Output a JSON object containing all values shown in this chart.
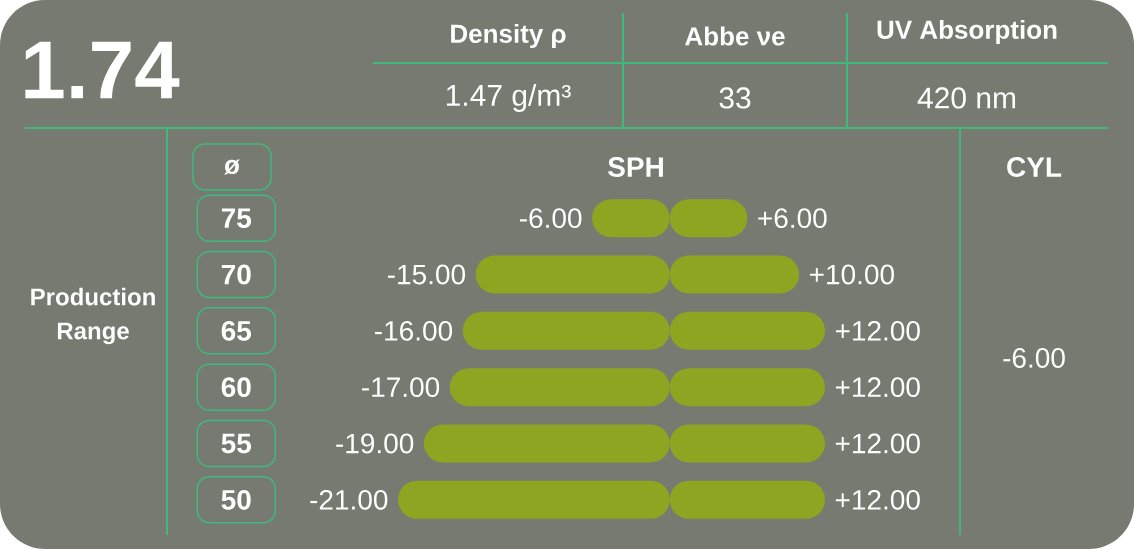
{
  "chart_data": {
    "type": "bar",
    "orientation": "horizontal",
    "stacked": true,
    "title": "1.74",
    "categories": [
      "75",
      "70",
      "65",
      "60",
      "55",
      "50"
    ],
    "series": [
      {
        "color": "#8ea522",
        "values": [
          -6,
          -15,
          -16,
          -17,
          -19,
          -21
        ],
        "value_labels": [
          "-6.00",
          "-15.00",
          "-16.00",
          "-17.00",
          "-19.00",
          "-21.00"
        ]
      },
      {
        "color": "#8ea522",
        "values": [
          6,
          10,
          12,
          12,
          12,
          12
        ],
        "value_labels": [
          "+6.00",
          "+10.00",
          "+12.00",
          "+12.00",
          "+12.00",
          "+12.00"
        ]
      }
    ],
    "xlim": [
      -21,
      12
    ],
    "tick_labels": "y",
    "annotations": [
      "Density ρ",
      "Abbe νe",
      "UV Absorption",
      "1.47 g/m³",
      "33",
      "420 nm",
      "ø",
      "SPH",
      "CYL",
      "-6.00",
      "Production Range"
    ]
  }
}
